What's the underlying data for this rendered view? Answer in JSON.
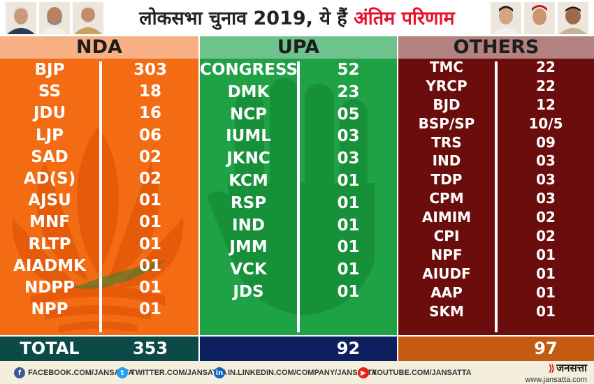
{
  "header": {
    "title_main": "लोकसभा चुनाव 2019, ये हैं ",
    "title_highlight": "अंतिम परिणाम",
    "accent_color": "#e8112d"
  },
  "columns": {
    "nda": {
      "heading": "NDA",
      "color": "#f36c14",
      "background_icon": "lotus-icon",
      "rows": [
        {
          "party": "BJP",
          "seats": "303"
        },
        {
          "party": "SS",
          "seats": "18"
        },
        {
          "party": "JDU",
          "seats": "16"
        },
        {
          "party": "LJP",
          "seats": "06"
        },
        {
          "party": "SAD",
          "seats": "02"
        },
        {
          "party": "AD(S)",
          "seats": "02"
        },
        {
          "party": "AJSU",
          "seats": "01"
        },
        {
          "party": "MNF",
          "seats": "01"
        },
        {
          "party": "RLTP",
          "seats": "01"
        },
        {
          "party": "AIADMK",
          "seats": "01"
        },
        {
          "party": "NDPP",
          "seats": "01"
        },
        {
          "party": "NPP",
          "seats": "01"
        }
      ],
      "total_label": "TOTAL",
      "total": "353"
    },
    "upa": {
      "heading": "UPA",
      "color": "#1fa146",
      "background_icon": "hand-icon",
      "rows": [
        {
          "party": "CONGRESS",
          "seats": "52"
        },
        {
          "party": "DMK",
          "seats": "23"
        },
        {
          "party": "NCP",
          "seats": "05"
        },
        {
          "party": "IUML",
          "seats": "03"
        },
        {
          "party": "JKNC",
          "seats": "03"
        },
        {
          "party": "KCM",
          "seats": "01"
        },
        {
          "party": "RSP",
          "seats": "01"
        },
        {
          "party": "IND",
          "seats": "01"
        },
        {
          "party": "JMM",
          "seats": "01"
        },
        {
          "party": "VCK",
          "seats": "01"
        },
        {
          "party": "JDS",
          "seats": "01"
        }
      ],
      "total": "92"
    },
    "others": {
      "heading": "OTHERS",
      "color": "#6c0d0d",
      "rows": [
        {
          "party": "TMC",
          "seats": "22"
        },
        {
          "party": "YRCP",
          "seats": "22"
        },
        {
          "party": "BJD",
          "seats": "12"
        },
        {
          "party": "BSP/SP",
          "seats": "10/5"
        },
        {
          "party": "TRS",
          "seats": "09"
        },
        {
          "party": "IND",
          "seats": "03"
        },
        {
          "party": "TDP",
          "seats": "03"
        },
        {
          "party": "CPM",
          "seats": "03"
        },
        {
          "party": "AIMIM",
          "seats": "02"
        },
        {
          "party": "CPI",
          "seats": "02"
        },
        {
          "party": "NPF",
          "seats": "01"
        },
        {
          "party": "AIUDF",
          "seats": "01"
        },
        {
          "party": "AAP",
          "seats": "01"
        },
        {
          "party": "SKM",
          "seats": "01"
        }
      ],
      "total": "97"
    }
  },
  "footer": {
    "socials": [
      {
        "icon": "facebook-icon",
        "glyph": "f",
        "label": "FACEBOOK.COM/JANSATTA"
      },
      {
        "icon": "twitter-icon",
        "glyph": "t",
        "label": "TWITTER.COM/JANSATTA"
      },
      {
        "icon": "linkedin-icon",
        "glyph": "in",
        "label": "IN.LINKEDIN.COM/COMPANY/JANSATTA"
      },
      {
        "icon": "youtube-icon",
        "glyph": "▶",
        "label": "YOUTUBE.COM/JANSATTA"
      }
    ],
    "brand_name": "जनसत्ता",
    "brand_url": "www.jansatta.com"
  }
}
